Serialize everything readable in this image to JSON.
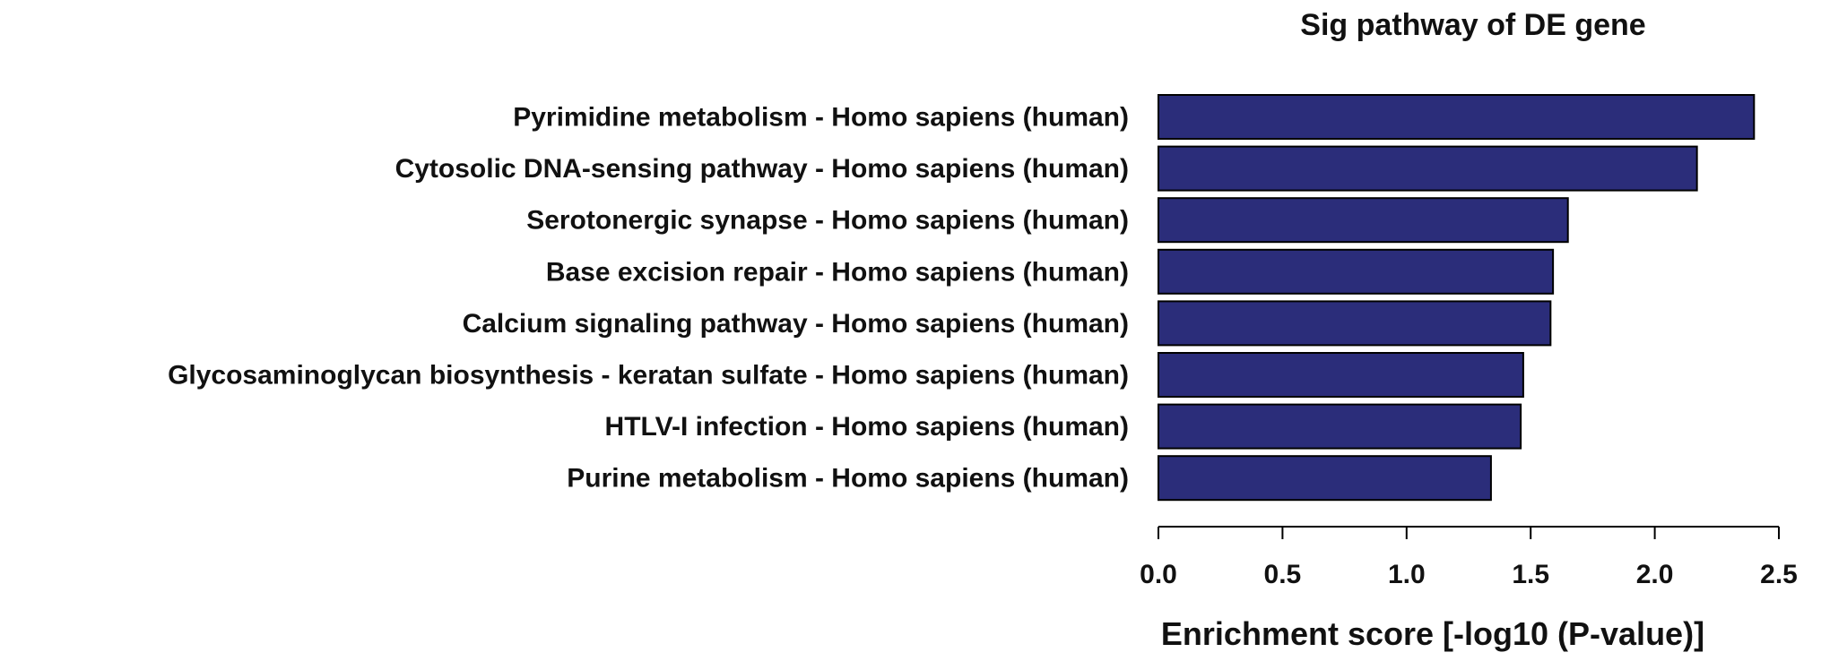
{
  "chart_data": {
    "type": "bar",
    "orientation": "horizontal",
    "title": "Sig pathway of DE gene",
    "xlabel": "Enrichment score [-log10 (P-value)]",
    "ylabel": "",
    "xlim": [
      0,
      2.5
    ],
    "xticks": [
      "0.0",
      "0.5",
      "1.0",
      "1.5",
      "2.0",
      "2.5"
    ],
    "grid": false,
    "bar_color": "#2b2d7a",
    "categories": [
      "Pyrimidine metabolism - Homo sapiens (human)",
      "Cytosolic DNA-sensing pathway - Homo sapiens (human)",
      "Serotonergic synapse - Homo sapiens (human)",
      "Base excision repair - Homo sapiens (human)",
      "Calcium signaling pathway - Homo sapiens (human)",
      "Glycosaminoglycan biosynthesis - keratan sulfate - Homo sapiens (human)",
      "HTLV-I infection - Homo sapiens (human)",
      "Purine metabolism - Homo sapiens (human)"
    ],
    "values": [
      2.4,
      2.17,
      1.65,
      1.59,
      1.58,
      1.47,
      1.46,
      1.34
    ]
  }
}
